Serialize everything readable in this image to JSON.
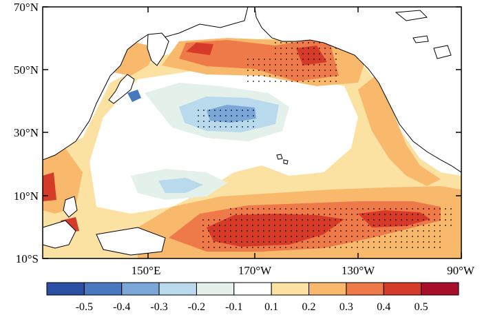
{
  "map": {
    "lat_ticks": [
      "70°N",
      "50°N",
      "30°N",
      "10°N",
      "10°S"
    ],
    "lon_ticks": [
      "150°E",
      "170°W",
      "130°W",
      "90°W"
    ]
  },
  "colorbar": {
    "labels": [
      "-0.5",
      "-0.4",
      "-0.3",
      "-0.2",
      "-0.1",
      "0.1",
      "0.2",
      "0.3",
      "0.4",
      "0.5"
    ],
    "colors": [
      "#2b4fa3",
      "#4a78c0",
      "#7aa6d8",
      "#b9d9ec",
      "#e3f1ea",
      "#ffffff",
      "#fce2a2",
      "#f8b96c",
      "#ee7a4a",
      "#d63b2a",
      "#a80f2b"
    ]
  },
  "palette": {
    "land": "#ffffff",
    "ocean_neutral": "#ffffff",
    "light_orange": "#fce2a2",
    "orange": "#f8b96c",
    "red_orange": "#ee7a4a",
    "red": "#d63b2a",
    "dark_red": "#a80f2b",
    "light_blue": "#b9d9ec",
    "pale_blue": "#e3f1ea",
    "blue": "#4a78c0"
  }
}
